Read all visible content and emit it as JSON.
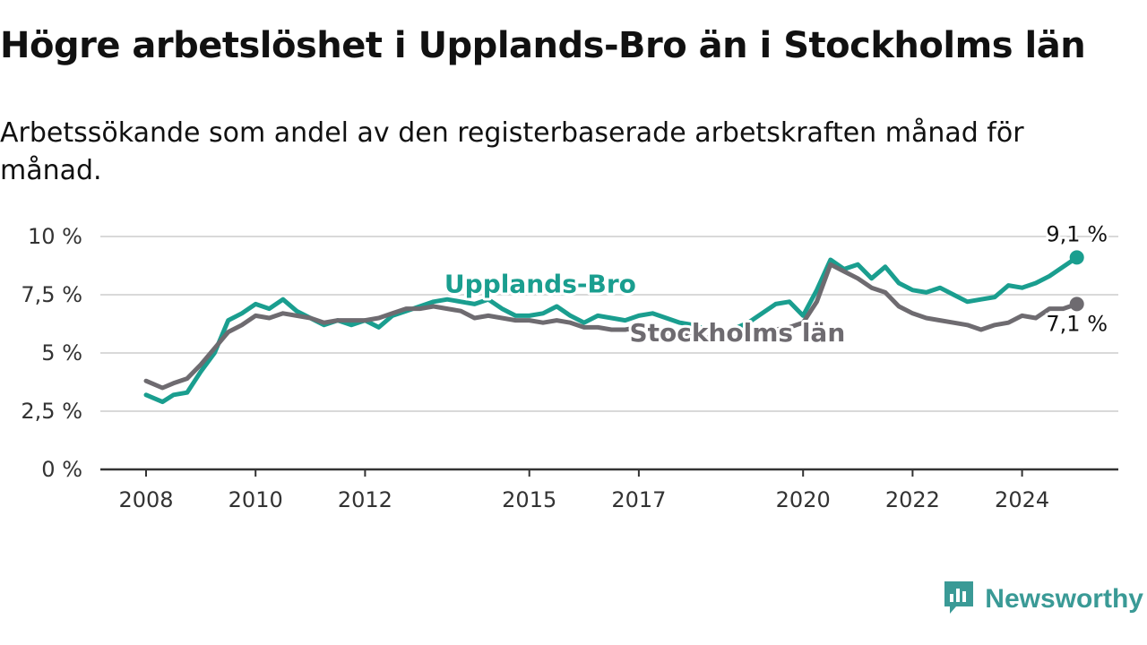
{
  "header": {
    "title": "Högre arbetslöshet i Upplands-Bro än i Stockholms län",
    "subtitle": "Arbetssökande som andel av den registerbaserade arbetskraften månad för månad."
  },
  "brand": {
    "name": "Newsworthy",
    "color": "#3a9a96",
    "icon": "bar-chart-speech-bubble-icon"
  },
  "chart_data": {
    "type": "line",
    "title": "Högre arbetslöshet i Upplands-Bro än i Stockholms län",
    "subtitle": "Arbetssökande som andel av den registerbaserade arbetskraften månad för månad.",
    "xlabel": "",
    "ylabel": "",
    "ylim": [
      0,
      10
    ],
    "yticks": [
      0,
      2.5,
      5,
      7.5,
      10
    ],
    "ytick_labels": [
      "0 %",
      "2,5 %",
      "5 %",
      "7,5 %",
      "10 %"
    ],
    "xticks": [
      2008,
      2010,
      2012,
      2015,
      2017,
      2020,
      2022,
      2024
    ],
    "xtick_labels": [
      "2008",
      "2010",
      "2012",
      "2015",
      "2017",
      "2020",
      "2022",
      "2024"
    ],
    "grid": "horizontal",
    "legend": "direct labels on lines",
    "series": [
      {
        "name": "Upplands-Bro",
        "color": "#1a9e8f",
        "end_label": "9,1 %",
        "x": [
          2008.0,
          2008.3,
          2008.5,
          2008.75,
          2009.0,
          2009.25,
          2009.5,
          2009.75,
          2010.0,
          2010.25,
          2010.5,
          2010.75,
          2011.0,
          2011.25,
          2011.5,
          2011.75,
          2012.0,
          2012.25,
          2012.5,
          2012.75,
          2013.0,
          2013.25,
          2013.5,
          2013.75,
          2014.0,
          2014.25,
          2014.5,
          2014.75,
          2015.0,
          2015.25,
          2015.5,
          2015.75,
          2016.0,
          2016.25,
          2016.5,
          2016.75,
          2017.0,
          2017.25,
          2017.5,
          2017.75,
          2018.0,
          2018.5,
          2019.0,
          2019.5,
          2019.75,
          2020.0,
          2020.25,
          2020.5,
          2020.75,
          2021.0,
          2021.25,
          2021.5,
          2021.75,
          2022.0,
          2022.25,
          2022.5,
          2022.75,
          2023.0,
          2023.25,
          2023.5,
          2023.75,
          2024.0,
          2024.25,
          2024.5,
          2024.75,
          2025.0
        ],
        "values": [
          3.2,
          2.9,
          3.2,
          3.3,
          4.2,
          5.0,
          6.4,
          6.7,
          7.1,
          6.9,
          7.3,
          6.8,
          6.5,
          6.2,
          6.4,
          6.2,
          6.4,
          6.1,
          6.6,
          6.8,
          7.0,
          7.2,
          7.3,
          7.2,
          7.1,
          7.3,
          6.9,
          6.6,
          6.6,
          6.7,
          7.0,
          6.6,
          6.3,
          6.6,
          6.5,
          6.4,
          6.6,
          6.7,
          6.5,
          6.3,
          6.2,
          5.8,
          6.3,
          7.1,
          7.2,
          6.6,
          7.7,
          9.0,
          8.6,
          8.8,
          8.2,
          8.7,
          8.0,
          7.7,
          7.6,
          7.8,
          7.5,
          7.2,
          7.3,
          7.4,
          7.9,
          7.8,
          8.0,
          8.3,
          8.7,
          9.1
        ]
      },
      {
        "name": "Stockholms län",
        "color": "#6e6b70",
        "end_label": "7,1 %",
        "x": [
          2008.0,
          2008.3,
          2008.5,
          2008.75,
          2009.0,
          2009.25,
          2009.5,
          2009.75,
          2010.0,
          2010.25,
          2010.5,
          2010.75,
          2011.0,
          2011.25,
          2011.5,
          2011.75,
          2012.0,
          2012.25,
          2012.5,
          2012.75,
          2013.0,
          2013.25,
          2013.5,
          2013.75,
          2014.0,
          2014.25,
          2014.5,
          2014.75,
          2015.0,
          2015.25,
          2015.5,
          2015.75,
          2016.0,
          2016.25,
          2016.5,
          2016.75,
          2017.0,
          2017.25,
          2017.5,
          2017.75,
          2018.0,
          2018.5,
          2019.0,
          2019.5,
          2019.75,
          2020.0,
          2020.25,
          2020.5,
          2020.75,
          2021.0,
          2021.25,
          2021.5,
          2021.75,
          2022.0,
          2022.25,
          2022.5,
          2022.75,
          2023.0,
          2023.25,
          2023.5,
          2023.75,
          2024.0,
          2024.25,
          2024.5,
          2024.75,
          2025.0
        ],
        "values": [
          3.8,
          3.5,
          3.7,
          3.9,
          4.5,
          5.2,
          5.9,
          6.2,
          6.6,
          6.5,
          6.7,
          6.6,
          6.5,
          6.3,
          6.4,
          6.4,
          6.4,
          6.5,
          6.7,
          6.9,
          6.9,
          7.0,
          6.9,
          6.8,
          6.5,
          6.6,
          6.5,
          6.4,
          6.4,
          6.3,
          6.4,
          6.3,
          6.1,
          6.1,
          6.0,
          6.0,
          6.1,
          6.0,
          5.9,
          5.8,
          5.7,
          5.6,
          5.7,
          6.0,
          6.1,
          6.3,
          7.2,
          8.8,
          8.5,
          8.2,
          7.8,
          7.6,
          7.0,
          6.7,
          6.5,
          6.4,
          6.3,
          6.2,
          6.0,
          6.2,
          6.3,
          6.6,
          6.5,
          6.9,
          6.9,
          7.1
        ]
      }
    ]
  }
}
